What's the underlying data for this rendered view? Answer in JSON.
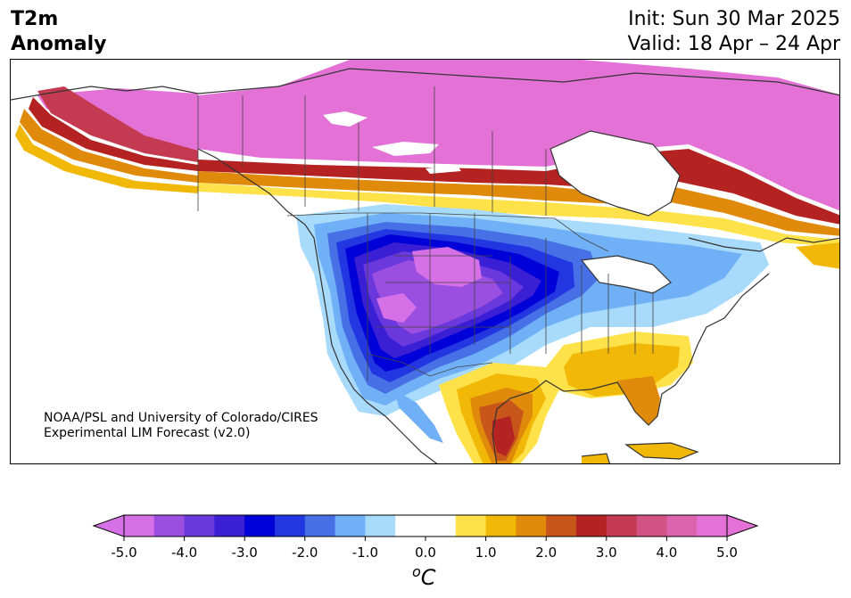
{
  "header": {
    "title_line1": "T2m",
    "title_line2": "Anomaly",
    "init": "Init: Sun 30 Mar 2025",
    "valid": "Valid: 18 Apr – 24 Apr"
  },
  "credit": {
    "line1": "NOAA/PSL and University of Colorado/CIRES",
    "line2": "Experimental LIM Forecast (v2.0)"
  },
  "colorbar": {
    "units_base": "C",
    "units_sup": "o",
    "tick_labels": [
      "-5.0",
      "-4.0",
      "-3.0",
      "-2.0",
      "-1.0",
      "0.0",
      "1.0",
      "2.0",
      "3.0",
      "4.0",
      "5.0"
    ],
    "levels": [
      -5.0,
      -4.5,
      -4.0,
      -3.5,
      -3.0,
      -2.5,
      -2.0,
      -1.5,
      -1.0,
      -0.5,
      0.5,
      1.0,
      1.5,
      2.0,
      2.5,
      3.0,
      3.5,
      4.0,
      4.5,
      5.0
    ],
    "colors": [
      "#d670e6",
      "#9b4fe0",
      "#6b38de",
      "#3a1fd4",
      "#0000d8",
      "#2236e2",
      "#4870e6",
      "#70b0f6",
      "#a8dafc",
      "#ffffff",
      "#ffe24a",
      "#f2b808",
      "#e08a0c",
      "#c8561a",
      "#b42222",
      "#c43a50",
      "#d25284",
      "#dc64ae",
      "#e472d6"
    ],
    "extend_low": "#d670e6",
    "extend_high": "#e472d6"
  },
  "map": {
    "colors": {
      "land_outline": "#333333",
      "water": "#ffffff"
    }
  }
}
